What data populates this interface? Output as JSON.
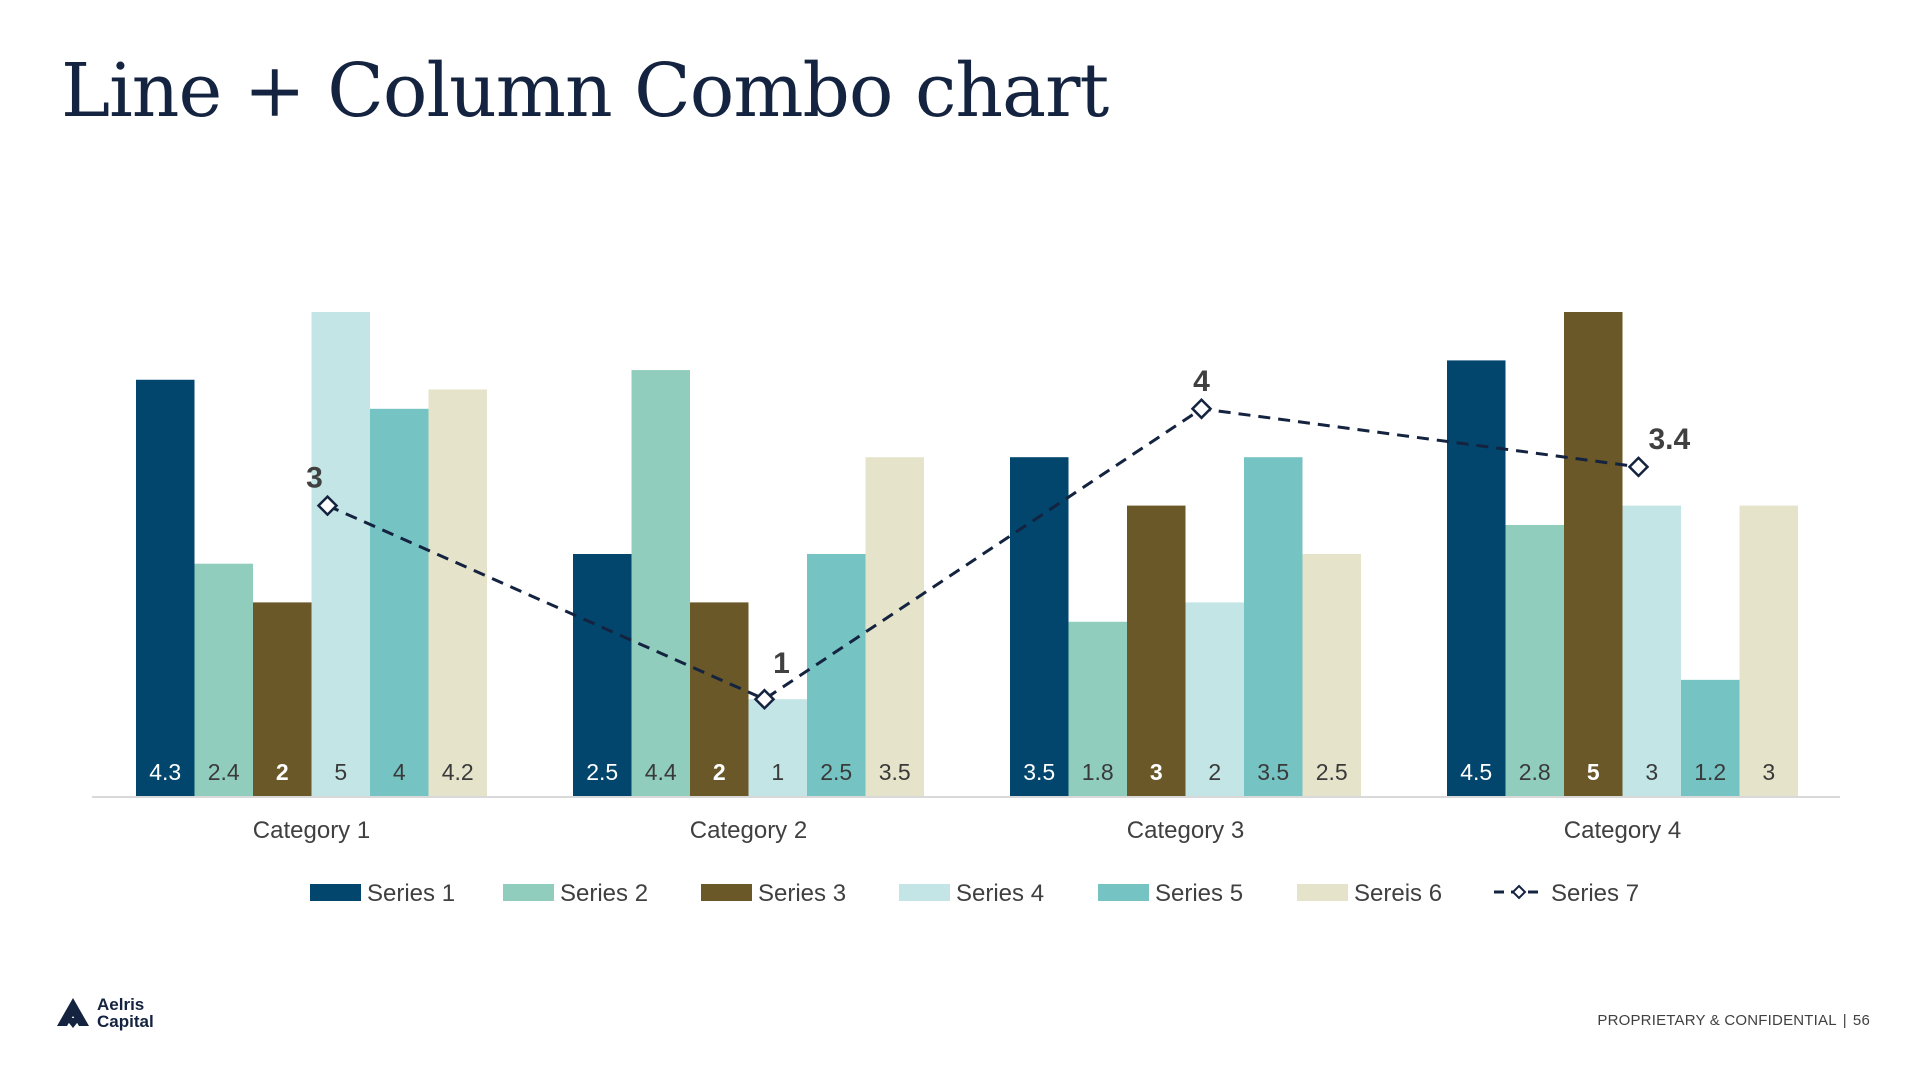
{
  "slide": {
    "title": "Line + Column Combo chart",
    "footer_text": "PROPRIETARY & CONFIDENTIAL",
    "footer_separator": "|",
    "page_number": "56",
    "logo": {
      "line1": "Aelris",
      "line2": "Capital",
      "icon": "aelris-logo-icon"
    }
  },
  "chart_data": {
    "type": "bar",
    "categories": [
      "Category 1",
      "Category 2",
      "Category 3",
      "Category 4"
    ],
    "ylim": [
      0,
      5
    ],
    "grid": false,
    "legend_position": "bottom",
    "series": [
      {
        "name": "Series 1",
        "type": "bar",
        "color": "#02466d",
        "label_color": "#ffffff",
        "label_bold": false,
        "values": [
          4.3,
          2.5,
          3.5,
          4.5
        ]
      },
      {
        "name": "Series 2",
        "type": "bar",
        "color": "#91cdbd",
        "label_color": "#3a3a3a",
        "label_bold": false,
        "values": [
          2.4,
          4.4,
          1.8,
          2.8
        ]
      },
      {
        "name": "Series 3",
        "type": "bar",
        "color": "#6b5829",
        "label_color": "#ffffff",
        "label_bold": true,
        "values": [
          2,
          2,
          3,
          5
        ]
      },
      {
        "name": "Series 4",
        "type": "bar",
        "color": "#c3e5e5",
        "label_color": "#3a3a3a",
        "label_bold": false,
        "values": [
          5,
          1,
          2,
          3
        ]
      },
      {
        "name": "Series 5",
        "type": "bar",
        "color": "#76c3c4",
        "label_color": "#3a3a3a",
        "label_bold": false,
        "values": [
          4,
          2.5,
          3.5,
          1.2
        ]
      },
      {
        "name": "Sereis 6",
        "type": "bar",
        "color": "#e5e4cb",
        "label_color": "#3a3a3a",
        "label_bold": false,
        "values": [
          4.2,
          3.5,
          2.5,
          3
        ]
      },
      {
        "name": "Series 7",
        "type": "line",
        "color": "#14233f",
        "values": [
          3,
          1,
          4,
          3.4
        ]
      }
    ]
  }
}
